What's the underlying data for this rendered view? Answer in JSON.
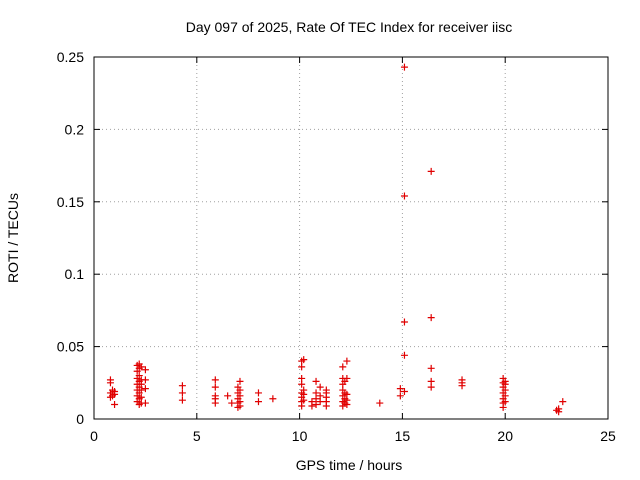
{
  "chart_data": {
    "type": "scatter",
    "title": "Day 097 of 2025, Rate Of TEC Index for receiver iisc",
    "xlabel": "GPS time / hours",
    "ylabel": "ROTI / TECUs",
    "xlim": [
      0,
      25
    ],
    "ylim": [
      0,
      0.25
    ],
    "xticks": [
      0,
      5,
      10,
      15,
      20,
      25
    ],
    "xtick_labels": [
      "0",
      "5",
      "10",
      "15",
      "20",
      "25"
    ],
    "yticks": [
      0,
      0.05,
      0.1,
      0.15,
      0.2,
      0.25
    ],
    "ytick_labels": [
      "0",
      "0.05",
      "0.1",
      "0.15",
      "0.2",
      "0.25"
    ],
    "grid": true,
    "marker": "plus",
    "color": "#e00000",
    "points": [
      [
        0.8,
        0.027
      ],
      [
        0.8,
        0.025
      ],
      [
        0.8,
        0.018
      ],
      [
        0.8,
        0.015
      ],
      [
        0.9,
        0.02
      ],
      [
        0.9,
        0.016
      ],
      [
        1.0,
        0.019
      ],
      [
        1.0,
        0.017
      ],
      [
        1.0,
        0.01
      ],
      [
        2.1,
        0.037
      ],
      [
        2.1,
        0.033
      ],
      [
        2.1,
        0.028
      ],
      [
        2.1,
        0.024
      ],
      [
        2.1,
        0.02
      ],
      [
        2.1,
        0.016
      ],
      [
        2.1,
        0.012
      ],
      [
        2.2,
        0.038
      ],
      [
        2.2,
        0.035
      ],
      [
        2.2,
        0.03
      ],
      [
        2.2,
        0.026
      ],
      [
        2.2,
        0.022
      ],
      [
        2.2,
        0.018
      ],
      [
        2.2,
        0.014
      ],
      [
        2.2,
        0.01
      ],
      [
        2.3,
        0.036
      ],
      [
        2.3,
        0.027
      ],
      [
        2.3,
        0.024
      ],
      [
        2.3,
        0.02
      ],
      [
        2.3,
        0.015
      ],
      [
        2.3,
        0.011
      ],
      [
        2.5,
        0.034
      ],
      [
        2.5,
        0.027
      ],
      [
        2.5,
        0.021
      ],
      [
        2.5,
        0.011
      ],
      [
        4.3,
        0.023
      ],
      [
        4.3,
        0.018
      ],
      [
        4.3,
        0.013
      ],
      [
        5.9,
        0.027
      ],
      [
        5.9,
        0.022
      ],
      [
        5.9,
        0.016
      ],
      [
        5.9,
        0.014
      ],
      [
        5.9,
        0.011
      ],
      [
        6.5,
        0.016
      ],
      [
        6.7,
        0.011
      ],
      [
        7.0,
        0.022
      ],
      [
        7.0,
        0.018
      ],
      [
        7.0,
        0.014
      ],
      [
        7.0,
        0.011
      ],
      [
        7.0,
        0.008
      ],
      [
        7.1,
        0.026
      ],
      [
        7.1,
        0.02
      ],
      [
        7.1,
        0.016
      ],
      [
        7.1,
        0.012
      ],
      [
        7.1,
        0.009
      ],
      [
        8.0,
        0.018
      ],
      [
        8.0,
        0.012
      ],
      [
        8.7,
        0.014
      ],
      [
        10.1,
        0.04
      ],
      [
        10.1,
        0.036
      ],
      [
        10.1,
        0.028
      ],
      [
        10.1,
        0.024
      ],
      [
        10.1,
        0.018
      ],
      [
        10.1,
        0.015
      ],
      [
        10.1,
        0.012
      ],
      [
        10.1,
        0.009
      ],
      [
        10.2,
        0.041
      ],
      [
        10.2,
        0.02
      ],
      [
        10.2,
        0.017
      ],
      [
        10.2,
        0.013
      ],
      [
        10.6,
        0.012
      ],
      [
        10.6,
        0.009
      ],
      [
        10.8,
        0.026
      ],
      [
        10.8,
        0.018
      ],
      [
        10.8,
        0.014
      ],
      [
        10.8,
        0.01
      ],
      [
        11.0,
        0.022
      ],
      [
        11.0,
        0.016
      ],
      [
        11.0,
        0.012
      ],
      [
        11.3,
        0.02
      ],
      [
        11.3,
        0.018
      ],
      [
        11.3,
        0.015
      ],
      [
        11.3,
        0.012
      ],
      [
        11.3,
        0.009
      ],
      [
        12.1,
        0.036
      ],
      [
        12.1,
        0.028
      ],
      [
        12.1,
        0.024
      ],
      [
        12.1,
        0.02
      ],
      [
        12.1,
        0.016
      ],
      [
        12.1,
        0.012
      ],
      [
        12.1,
        0.009
      ],
      [
        12.2,
        0.026
      ],
      [
        12.2,
        0.018
      ],
      [
        12.2,
        0.014
      ],
      [
        12.2,
        0.011
      ],
      [
        12.3,
        0.04
      ],
      [
        12.3,
        0.028
      ],
      [
        12.3,
        0.017
      ],
      [
        12.3,
        0.013
      ],
      [
        12.3,
        0.01
      ],
      [
        13.9,
        0.011
      ],
      [
        14.9,
        0.021
      ],
      [
        14.9,
        0.016
      ],
      [
        15.1,
        0.243
      ],
      [
        15.1,
        0.154
      ],
      [
        15.1,
        0.067
      ],
      [
        15.1,
        0.044
      ],
      [
        15.1,
        0.019
      ],
      [
        16.4,
        0.171
      ],
      [
        16.4,
        0.07
      ],
      [
        16.4,
        0.035
      ],
      [
        16.4,
        0.026
      ],
      [
        16.4,
        0.022
      ],
      [
        17.9,
        0.027
      ],
      [
        17.9,
        0.025
      ],
      [
        17.9,
        0.023
      ],
      [
        19.9,
        0.028
      ],
      [
        19.9,
        0.025
      ],
      [
        19.9,
        0.022
      ],
      [
        19.9,
        0.018
      ],
      [
        19.9,
        0.014
      ],
      [
        19.9,
        0.011
      ],
      [
        19.9,
        0.008
      ],
      [
        20.0,
        0.026
      ],
      [
        20.0,
        0.024
      ],
      [
        20.0,
        0.02
      ],
      [
        20.0,
        0.016
      ],
      [
        20.0,
        0.012
      ],
      [
        22.5,
        0.006
      ],
      [
        22.6,
        0.007
      ],
      [
        22.6,
        0.005
      ],
      [
        22.8,
        0.012
      ]
    ]
  }
}
